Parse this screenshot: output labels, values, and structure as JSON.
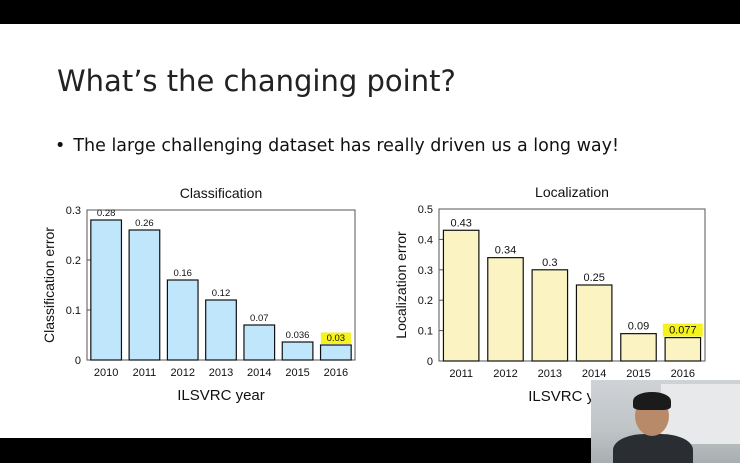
{
  "slide": {
    "title": "What’s the changing point?",
    "bullet": "The large challenging dataset has really driven us a long way!"
  },
  "colors": {
    "classification_bar": "#bfe6fb",
    "localization_bar": "#fbf4c2",
    "highlight": "#f6f21b"
  },
  "chart_data": [
    {
      "type": "bar",
      "title": "Classification",
      "xlabel": "ILSVRC year",
      "ylabel": "Classification error",
      "categories": [
        "2010",
        "2011",
        "2012",
        "2013",
        "2014",
        "2015",
        "2016"
      ],
      "values": [
        0.28,
        0.26,
        0.16,
        0.12,
        0.07,
        0.036,
        0.03
      ],
      "value_labels": [
        "0.28",
        "0.26",
        "0.16",
        "0.12",
        "0.07",
        "0.036",
        "0.03"
      ],
      "highlighted_category": "2016",
      "ylim": [
        0,
        0.3
      ],
      "yticks": [
        "0",
        "0.1",
        "0.2",
        "0.3"
      ],
      "grid": false
    },
    {
      "type": "bar",
      "title": "Localization",
      "xlabel": "ILSVRC year",
      "ylabel": "Localization error",
      "categories": [
        "2011",
        "2012",
        "2013",
        "2014",
        "2015",
        "2016"
      ],
      "values": [
        0.43,
        0.34,
        0.3,
        0.25,
        0.09,
        0.077
      ],
      "value_labels": [
        "0.43",
        "0.34",
        "0.3",
        "0.25",
        "0.09",
        "0.077"
      ],
      "highlighted_category": "2016",
      "ylim": [
        0,
        0.5
      ],
      "yticks": [
        "0",
        "0.1",
        "0.2",
        "0.3",
        "0.4",
        "0.5"
      ],
      "grid": false
    }
  ]
}
